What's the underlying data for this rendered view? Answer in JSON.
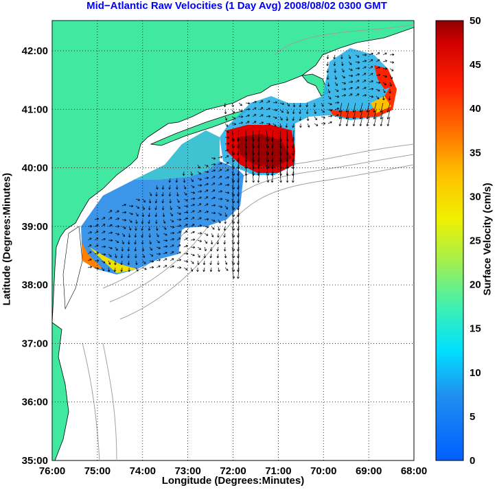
{
  "title": "Mid−Atlantic Raw Velocities (1 Day Avg) 2008/08/02 0300 GMT",
  "xlabel": "Longitude (Degrees:Minutes)",
  "ylabel": "Latitude (Degrees:Minutes)",
  "colorbar_label": "Surface Velocity (cm/s)",
  "x_ticks": [
    "76:00",
    "75:00",
    "74:00",
    "73:00",
    "72:00",
    "71:00",
    "70:00",
    "69:00",
    "68:00"
  ],
  "y_ticks": [
    "42:00",
    "41:00",
    "40:00",
    "39:00",
    "38:00",
    "37:00",
    "36:00",
    "35:00"
  ],
  "colorbar_ticks": [
    "50",
    "45",
    "40",
    "35",
    "30",
    "25",
    "20",
    "15",
    "10",
    "5",
    "0"
  ],
  "colors": {
    "title": "#0000ff",
    "land": "#40e8a0",
    "bathymetry": "#a0a0a0",
    "vectors": "#000000"
  },
  "chart_data": {
    "type": "heatmap",
    "xlim_deg_west": [
      76,
      68
    ],
    "ylim_deg_north": [
      35,
      42.5
    ],
    "colorbar_range_cm_s": [
      0,
      50
    ],
    "grid": "dotted",
    "regions": [
      {
        "name": "",
        "approx_speed_cm_s": 5
      },
      {
        "name": "",
        "approx_speed_cm_s": 12
      },
      {
        "name": "",
        "approx_speed_cm_s": 48
      },
      {
        "name": "",
        "approx_speed_cm_s": 42
      }
    ]
  }
}
